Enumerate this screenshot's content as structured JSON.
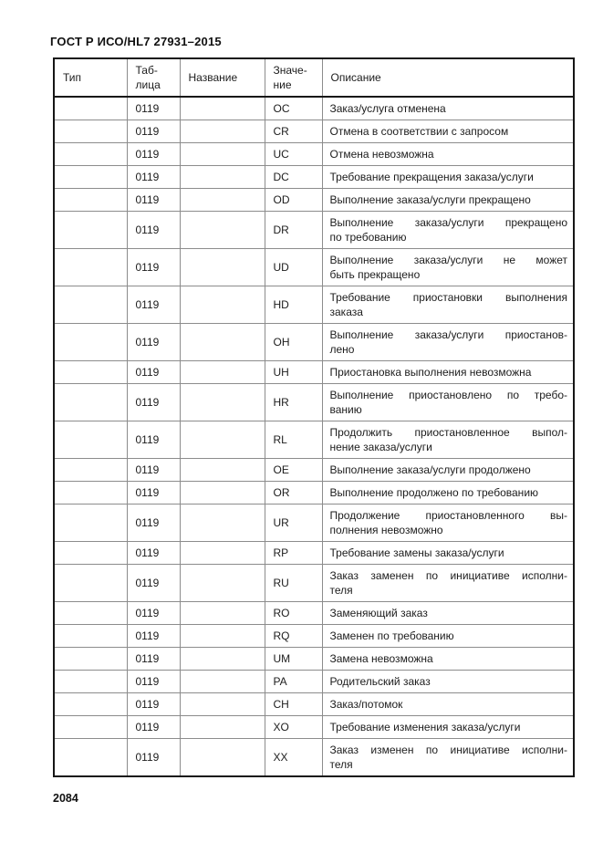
{
  "page": {
    "doc_title": "ГОСТ Р ИСО/HL7 27931–2015",
    "page_number": "2084"
  },
  "table": {
    "headers": {
      "type": "Тип",
      "table_id": "Таб-\nлица",
      "name": "Название",
      "value": "Значе-\nние",
      "description": "Описание"
    },
    "rows": [
      {
        "type": "",
        "table_id": "0119",
        "name": "",
        "value": "OC",
        "description_lines": [
          "Заказ/услуга отменена"
        ]
      },
      {
        "type": "",
        "table_id": "0119",
        "name": "",
        "value": "CR",
        "description_lines": [
          "Отмена в соответствии с запросом"
        ]
      },
      {
        "type": "",
        "table_id": "0119",
        "name": "",
        "value": "UC",
        "description_lines": [
          "Отмена невозможна"
        ]
      },
      {
        "type": "",
        "table_id": "0119",
        "name": "",
        "value": "DC",
        "description_lines": [
          "Требование прекращения заказа/услуги"
        ]
      },
      {
        "type": "",
        "table_id": "0119",
        "name": "",
        "value": "OD",
        "description_lines": [
          "Выполнение заказа/услуги прекращено"
        ]
      },
      {
        "type": "",
        "table_id": "0119",
        "name": "",
        "value": "DR",
        "description_lines": [
          "Выполнение заказа/услуги прекращено",
          "по требованию"
        ]
      },
      {
        "type": "",
        "table_id": "0119",
        "name": "",
        "value": "UD",
        "description_lines": [
          "Выполнение заказа/услуги не может",
          "быть прекращено"
        ]
      },
      {
        "type": "",
        "table_id": "0119",
        "name": "",
        "value": "HD",
        "description_lines": [
          "Требование приостановки выполнения",
          "заказа"
        ]
      },
      {
        "type": "",
        "table_id": "0119",
        "name": "",
        "value": "OH",
        "description_lines": [
          "Выполнение заказа/услуги приостанов-",
          "лено"
        ]
      },
      {
        "type": "",
        "table_id": "0119",
        "name": "",
        "value": "UH",
        "description_lines": [
          "Приостановка выполнения невозможна"
        ]
      },
      {
        "type": "",
        "table_id": "0119",
        "name": "",
        "value": "HR",
        "description_lines": [
          "Выполнение приостановлено по требо-",
          "ванию"
        ]
      },
      {
        "type": "",
        "table_id": "0119",
        "name": "",
        "value": "RL",
        "description_lines": [
          "Продолжить приостановленное выпол-",
          "нение заказа/услуги"
        ]
      },
      {
        "type": "",
        "table_id": "0119",
        "name": "",
        "value": "OE",
        "description_lines": [
          "Выполнение заказа/услуги продолжено"
        ]
      },
      {
        "type": "",
        "table_id": "0119",
        "name": "",
        "value": "OR",
        "description_lines": [
          "Выполнение продолжено по требованию"
        ]
      },
      {
        "type": "",
        "table_id": "0119",
        "name": "",
        "value": "UR",
        "description_lines": [
          "Продолжение приостановленного вы-",
          "полнения невозможно"
        ]
      },
      {
        "type": "",
        "table_id": "0119",
        "name": "",
        "value": "RP",
        "description_lines": [
          "Требование замены заказа/услуги"
        ]
      },
      {
        "type": "",
        "table_id": "0119",
        "name": "",
        "value": "RU",
        "description_lines": [
          "Заказ заменен по инициативе исполни-",
          "теля"
        ]
      },
      {
        "type": "",
        "table_id": "0119",
        "name": "",
        "value": "RO",
        "description_lines": [
          "Заменяющий заказ"
        ]
      },
      {
        "type": "",
        "table_id": "0119",
        "name": "",
        "value": "RQ",
        "description_lines": [
          "Заменен по требованию"
        ]
      },
      {
        "type": "",
        "table_id": "0119",
        "name": "",
        "value": "UM",
        "description_lines": [
          "Замена невозможна"
        ]
      },
      {
        "type": "",
        "table_id": "0119",
        "name": "",
        "value": "PA",
        "description_lines": [
          "Родительский заказ"
        ]
      },
      {
        "type": "",
        "table_id": "0119",
        "name": "",
        "value": "CH",
        "description_lines": [
          "Заказ/потомок"
        ]
      },
      {
        "type": "",
        "table_id": "0119",
        "name": "",
        "value": "XO",
        "description_lines": [
          "Требование изменения заказа/услуги"
        ]
      },
      {
        "type": "",
        "table_id": "0119",
        "name": "",
        "value": "XX",
        "description_lines": [
          "Заказ изменен по инициативе исполни-",
          "теля"
        ]
      }
    ]
  }
}
